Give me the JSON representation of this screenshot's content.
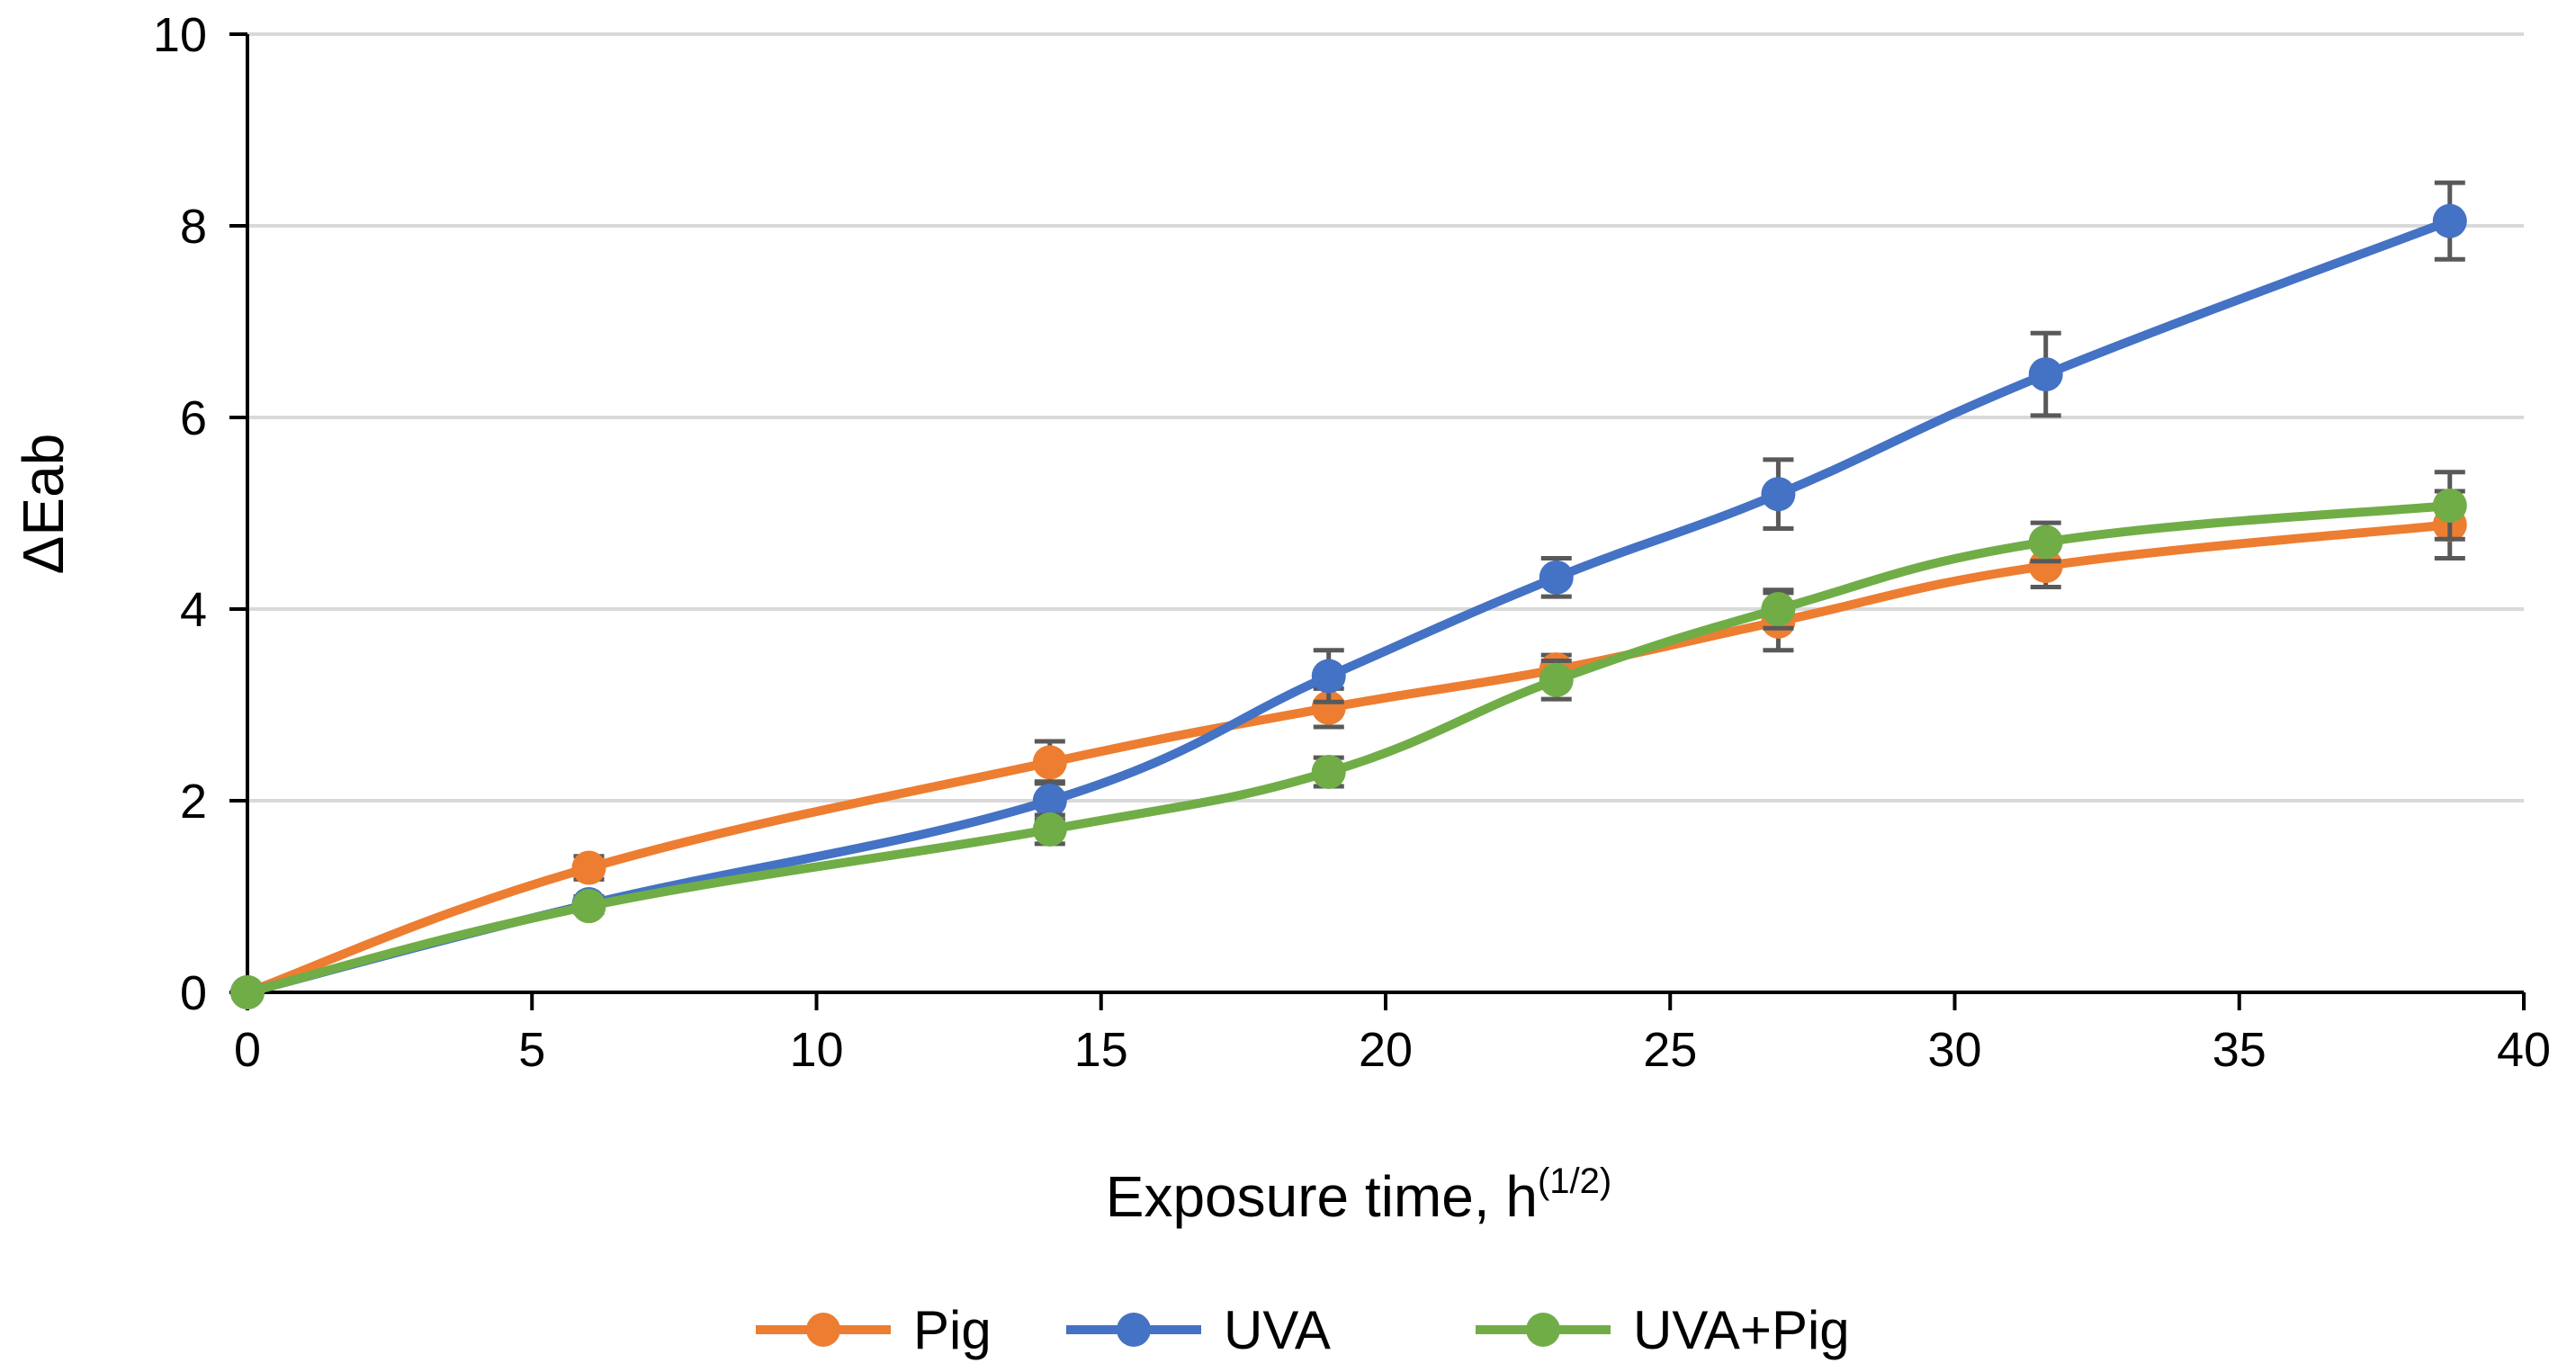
{
  "chart_data": {
    "type": "line",
    "title": "",
    "xlabel": "Exposure time, h",
    "xlabel_superscript": "(1/2)",
    "ylabel": "ΔEab",
    "xlim": [
      0,
      40
    ],
    "ylim": [
      0,
      10
    ],
    "xticks": [
      "0",
      "5",
      "10",
      "15",
      "20",
      "25",
      "30",
      "35",
      "40"
    ],
    "yticks": [
      "0",
      "2",
      "4",
      "6",
      "8",
      "10"
    ],
    "grid": "horizontal",
    "legend_position": "bottom",
    "x": [
      0,
      6,
      14.1,
      19,
      23,
      26.9,
      31.6,
      38.7
    ],
    "series": [
      {
        "name": "Pig",
        "color": "#ED7D31",
        "values": [
          0,
          1.3,
          2.4,
          2.97,
          3.37,
          3.87,
          4.45,
          4.88
        ],
        "errors": [
          0,
          0.12,
          0.22,
          0.2,
          0.15,
          0.3,
          0.22,
          0.35
        ]
      },
      {
        "name": "UVA",
        "color": "#4472C4",
        "values": [
          0,
          0.92,
          2.0,
          3.3,
          4.33,
          5.2,
          6.45,
          8.05
        ],
        "errors": [
          0,
          0.08,
          0.2,
          0.27,
          0.2,
          0.36,
          0.43,
          0.4
        ]
      },
      {
        "name": "UVA+Pig",
        "color": "#70AD47",
        "values": [
          0,
          0.9,
          1.7,
          2.3,
          3.26,
          4.0,
          4.7,
          5.08
        ],
        "errors": [
          0,
          0.07,
          0.15,
          0.15,
          0.2,
          0.2,
          0.2,
          0.35
        ]
      }
    ]
  }
}
